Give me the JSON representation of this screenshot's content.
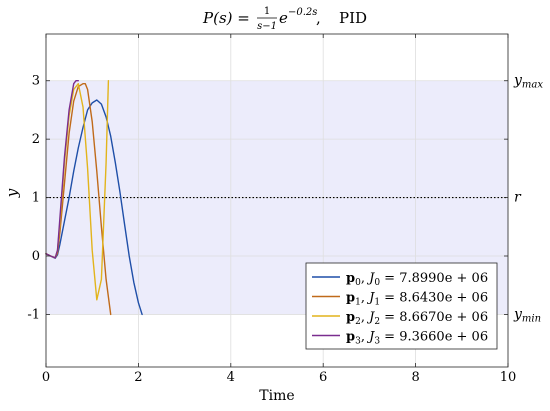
{
  "title": {
    "lhs": "P(s) =",
    "frac_num": "1",
    "frac_den": "s−1",
    "exp_base": "e",
    "exp_sup": "−0.2s",
    "sep": ",",
    "controller": "PID"
  },
  "colors": {
    "band": "#ececfb",
    "grid": "#dedede",
    "axis": "#262626",
    "refline": "#000000"
  },
  "chart_data": {
    "type": "line",
    "xlabel": "Time",
    "ylabel": "y",
    "xlim": [
      0,
      10
    ],
    "ylim": [
      -1.9,
      3.8
    ],
    "xticks": [
      0,
      2,
      4,
      6,
      8,
      10
    ],
    "xtick_labels": [
      "0",
      "2",
      "4",
      "6",
      "8",
      "10"
    ],
    "yticks": [
      -1,
      0,
      1,
      2,
      3
    ],
    "ytick_labels": [
      "-1",
      "0",
      "1",
      "2",
      "3"
    ],
    "grid": true,
    "band": {
      "ymin": -1,
      "ymax": 3
    },
    "reference": {
      "y": 1,
      "style": "dotted"
    },
    "right_labels": [
      {
        "y": 3,
        "base": "y",
        "sub": "max"
      },
      {
        "y": 1,
        "base": "r",
        "sub": ""
      },
      {
        "y": -1,
        "base": "y",
        "sub": "min"
      }
    ],
    "legend_position": "bottom-right",
    "series": [
      {
        "label_base": "p",
        "label_idx": "0",
        "label_J": "J",
        "label_value": " = 7.8990e + 06",
        "color": "#1f4fa8",
        "x": [
          0,
          0.1,
          0.2,
          0.25,
          0.3,
          0.4,
          0.5,
          0.6,
          0.7,
          0.8,
          0.9,
          1.0,
          1.1,
          1.2,
          1.3,
          1.4,
          1.5,
          1.6,
          1.7,
          1.8,
          1.9,
          2.0,
          2.08
        ],
        "y": [
          0.04,
          0.0,
          -0.04,
          0.02,
          0.2,
          0.6,
          1.0,
          1.45,
          1.85,
          2.2,
          2.5,
          2.62,
          2.67,
          2.6,
          2.38,
          2.05,
          1.6,
          1.1,
          0.55,
          0.0,
          -0.45,
          -0.8,
          -1.0
        ]
      },
      {
        "label_base": "p",
        "label_idx": "1",
        "label_J": "J",
        "label_value": " = 8.6430e + 06",
        "color": "#c06a1a",
        "x": [
          0,
          0.1,
          0.2,
          0.25,
          0.3,
          0.4,
          0.5,
          0.6,
          0.7,
          0.8,
          0.85,
          0.9,
          1.0,
          1.1,
          1.2,
          1.3,
          1.4
        ],
        "y": [
          0.04,
          0.0,
          -0.03,
          0.05,
          0.4,
          1.25,
          2.1,
          2.65,
          2.9,
          2.95,
          2.95,
          2.85,
          2.3,
          1.45,
          0.5,
          -0.4,
          -1.0
        ]
      },
      {
        "label_base": "p",
        "label_idx": "2",
        "label_J": "J",
        "label_value": " = 8.6670e + 06",
        "color": "#e2b41c",
        "x": [
          0,
          0.1,
          0.2,
          0.25,
          0.3,
          0.4,
          0.5,
          0.6,
          0.7,
          0.8,
          0.9,
          1.0,
          1.1,
          1.2,
          1.3,
          1.35
        ],
        "y": [
          0.04,
          0.0,
          -0.03,
          0.1,
          0.55,
          1.6,
          2.4,
          2.85,
          2.95,
          2.55,
          1.5,
          0.1,
          -0.75,
          -0.4,
          1.6,
          3.0
        ]
      },
      {
        "label_base": "p",
        "label_idx": "3",
        "label_J": "J",
        "label_value": " = 9.3660e + 06",
        "color": "#7a2d8f",
        "x": [
          0,
          0.1,
          0.2,
          0.25,
          0.3,
          0.4,
          0.5,
          0.6,
          0.65,
          0.7
        ],
        "y": [
          0.04,
          0.0,
          -0.03,
          0.1,
          0.65,
          1.7,
          2.5,
          2.95,
          3.0,
          3.0
        ]
      }
    ]
  }
}
